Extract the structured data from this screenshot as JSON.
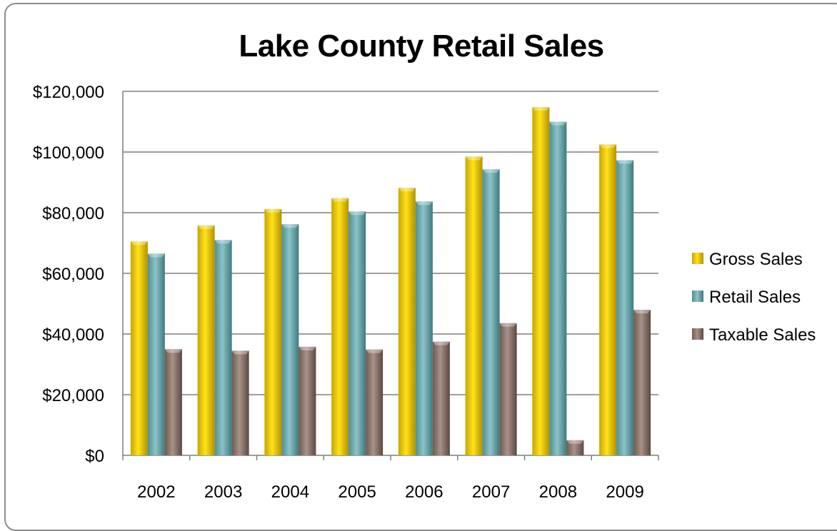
{
  "chart_data": {
    "type": "bar",
    "title": "Lake County Retail Sales",
    "xlabel": "",
    "ylabel": "",
    "categories": [
      "2002",
      "2003",
      "2004",
      "2005",
      "2006",
      "2007",
      "2008",
      "2009"
    ],
    "series": [
      {
        "name": "Gross Sales",
        "color": "#f2cc00",
        "values": [
          70500,
          75800,
          81200,
          84800,
          88200,
          98500,
          114800,
          102500
        ]
      },
      {
        "name": "Retail Sales",
        "color": "#6aa6ab",
        "values": [
          66500,
          71000,
          76200,
          80400,
          83700,
          94300,
          110000,
          97300
        ]
      },
      {
        "name": "Taxable Sales",
        "color": "#8a7469",
        "values": [
          35000,
          34500,
          35800,
          34900,
          37500,
          43600,
          5000,
          48000
        ]
      }
    ],
    "ylim": [
      0,
      120000
    ],
    "yticks": [
      0,
      20000,
      40000,
      60000,
      80000,
      100000,
      120000
    ],
    "ytick_labels": [
      "$0",
      "$20,000",
      "$40,000",
      "$60,000",
      "$80,000",
      "$100,000",
      "$120,000"
    ],
    "grid": true,
    "legend_position": "right"
  }
}
